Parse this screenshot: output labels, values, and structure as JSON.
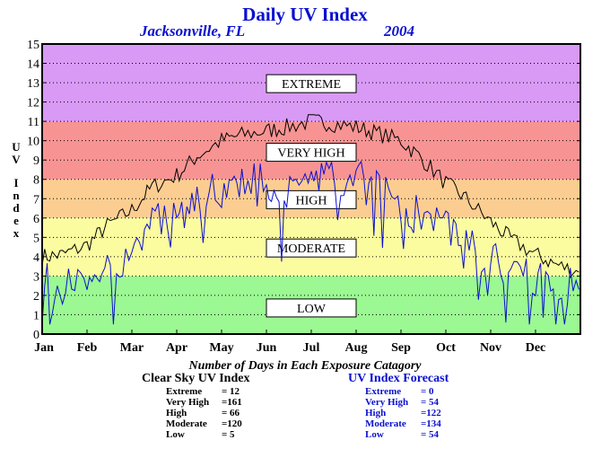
{
  "title": "Daily UV Index",
  "location": "Jacksonville, FL",
  "year": "2004",
  "colors": {
    "extreme": "#d89af5",
    "very_high": "#f79493",
    "high": "#fccd91",
    "moderate": "#fbfb9f",
    "low": "#9bf892",
    "clear_sky_line": "#000000",
    "forecast_line": "#0a10d0"
  },
  "chart_data": {
    "type": "line",
    "title": "Daily UV Index",
    "ylabel": "UV Index",
    "xlabel": "",
    "ylim": [
      0,
      15
    ],
    "yticks": [
      "0",
      "1",
      "2",
      "3",
      "4",
      "5",
      "6",
      "7",
      "8",
      "9",
      "10",
      "11",
      "12",
      "13",
      "14",
      "15"
    ],
    "x_tick_labels": [
      "Jan",
      "Feb",
      "Mar",
      "Apr",
      "May",
      "Jun",
      "Jul",
      "Aug",
      "Sep",
      "Oct",
      "Nov",
      "Dec"
    ],
    "grid": true,
    "bands": [
      {
        "label": "LOW",
        "from": 0,
        "to": 3
      },
      {
        "label": "MODERATE",
        "from": 3,
        "to": 6
      },
      {
        "label": "HIGH",
        "from": 6,
        "to": 8
      },
      {
        "label": "VERY HIGH",
        "from": 8,
        "to": 11
      },
      {
        "label": "EXTREME",
        "from": 11,
        "to": 15
      }
    ],
    "series": [
      {
        "key": "clear_sky",
        "name": "Clear Sky UV Index",
        "x": [
          "Jan 1",
          "Jan 15",
          "Feb 1",
          "Feb 15",
          "Mar 1",
          "Mar 15",
          "Apr 1",
          "Apr 15",
          "May 1",
          "May 15",
          "Jun 1",
          "Jun 15",
          "Jul 1",
          "Jul 15",
          "Aug 1",
          "Aug 15",
          "Sep 1",
          "Sep 15",
          "Oct 1",
          "Oct 15",
          "Nov 1",
          "Nov 15",
          "Dec 1",
          "Dec 15",
          "Dec 31"
        ],
        "values": [
          4.0,
          4.1,
          4.6,
          5.6,
          6.4,
          7.6,
          8.2,
          9.2,
          10.0,
          10.3,
          10.5,
          10.7,
          11.0,
          10.9,
          10.7,
          10.4,
          10.0,
          9.1,
          7.8,
          7.0,
          5.8,
          4.9,
          4.1,
          3.6,
          3.2
        ]
      },
      {
        "key": "forecast",
        "name": "UV Index Forecast",
        "x": [
          "Jan 1",
          "Jan 15",
          "Feb 1",
          "Feb 15",
          "Mar 1",
          "Mar 15",
          "Apr 1",
          "Apr 15",
          "May 1",
          "May 15",
          "Jun 1",
          "Jun 15",
          "Jul 1",
          "Jul 15",
          "Aug 1",
          "Aug 15",
          "Sep 1",
          "Sep 15",
          "Oct 1",
          "Oct 15",
          "Nov 1",
          "Nov 15",
          "Dec 1",
          "Dec 15",
          "Dec 31"
        ],
        "values": [
          3.2,
          2.5,
          3.0,
          3.4,
          4.5,
          5.6,
          6.0,
          7.4,
          7.6,
          7.9,
          8.0,
          7.5,
          8.2,
          7.8,
          8.1,
          7.4,
          6.8,
          6.0,
          5.8,
          5.0,
          3.8,
          3.2,
          2.8,
          2.6,
          2.3
        ]
      }
    ]
  },
  "stats": {
    "heading": "Number of Days in Each Exposure Catagory",
    "clear": {
      "title": "Clear Sky UV Index",
      "rows": [
        {
          "label": "Extreme",
          "value": "= 12"
        },
        {
          "label": "Very High",
          "value": "=161"
        },
        {
          "label": "High",
          "value": "= 66"
        },
        {
          "label": "Moderate",
          "value": "=120"
        },
        {
          "label": "Low",
          "value": "= 5"
        }
      ]
    },
    "forecast": {
      "title": "UV Index Forecast",
      "rows": [
        {
          "label": "Extreme",
          "value": "= 0"
        },
        {
          "label": "Very High",
          "value": "= 54"
        },
        {
          "label": "High",
          "value": "=122"
        },
        {
          "label": "Moderate",
          "value": "=134"
        },
        {
          "label": "Low",
          "value": "= 54"
        }
      ]
    }
  }
}
